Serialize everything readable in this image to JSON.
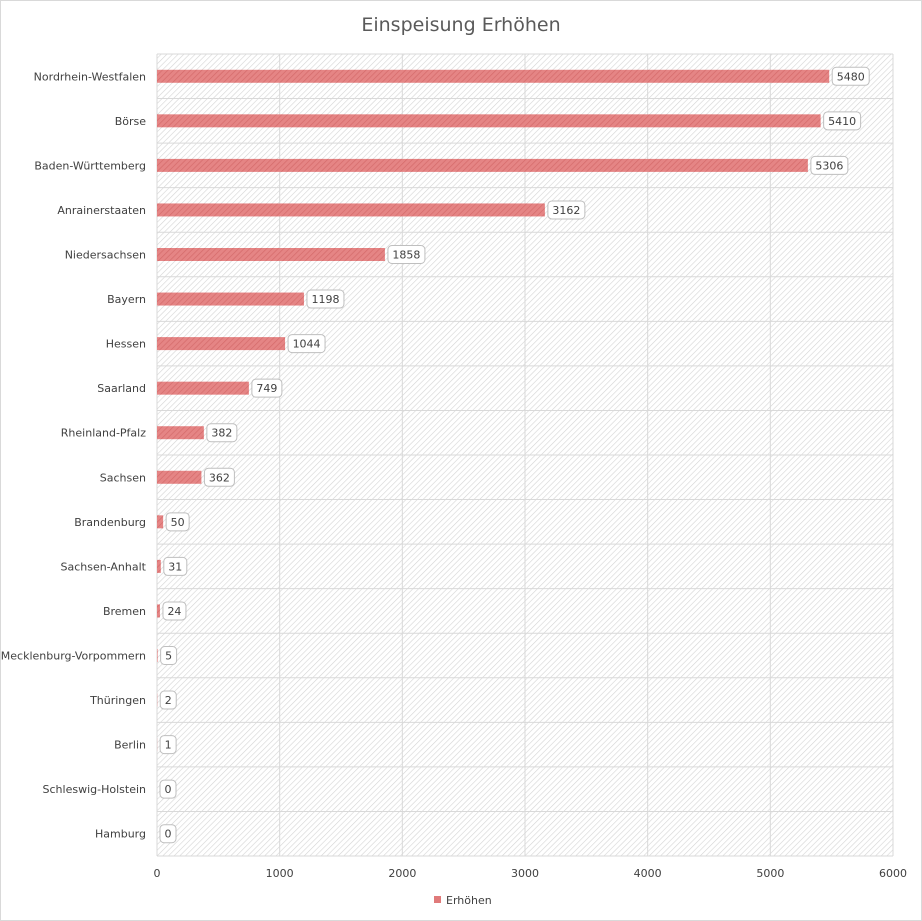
{
  "chart_data": {
    "type": "bar",
    "orientation": "horizontal",
    "title": "Einspeisung Erhöhen",
    "categories": [
      "Nordrhein-Westfalen",
      "Börse",
      "Baden-Württemberg",
      "Anrainerstaaten",
      "Niedersachsen",
      "Bayern",
      "Hessen",
      "Saarland",
      "Rheinland-Pfalz",
      "Sachsen",
      "Brandenburg",
      "Sachsen-Anhalt",
      "Bremen",
      "Mecklenburg-Vorpommern",
      "Thüringen",
      "Berlin",
      "Schleswig-Holstein",
      "Hamburg"
    ],
    "series": [
      {
        "name": "Erhöhen",
        "color": "#e07a7a",
        "values": [
          5480,
          5410,
          5306,
          3162,
          1858,
          1198,
          1044,
          749,
          382,
          362,
          50,
          31,
          24,
          5,
          2,
          1,
          0,
          0
        ]
      }
    ],
    "xlim": [
      0,
      6000
    ],
    "xticks": [
      0,
      1000,
      2000,
      3000,
      4000,
      5000,
      6000
    ],
    "grid": true,
    "legend_position": "bottom",
    "data_labels": true
  }
}
